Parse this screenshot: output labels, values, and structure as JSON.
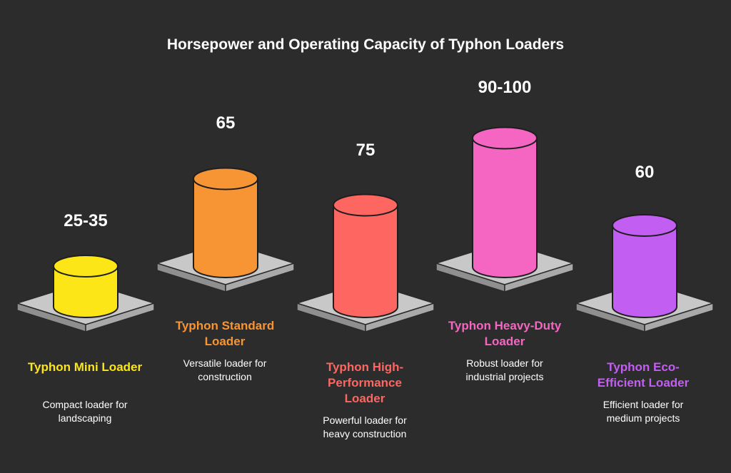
{
  "chart_data": {
    "type": "bar",
    "title": "Horsepower and Operating Capacity of Typhon Loaders",
    "categories": [
      "Typhon Mini Loader",
      "Typhon Standard Loader",
      "Typhon High-Performance Loader",
      "Typhon Heavy-Duty Loader",
      "Typhon Eco-Efficient Loader"
    ],
    "value_labels": [
      "25-35",
      "65",
      "75",
      "90-100",
      "60"
    ],
    "values": [
      30,
      65,
      75,
      95,
      60
    ],
    "items": [
      {
        "value_label": "25-35",
        "value": 30,
        "name": "Typhon Mini Loader",
        "description": "Compact loader for landscaping",
        "color": "#fde617"
      },
      {
        "value_label": "65",
        "value": 65,
        "name": "Typhon Standard Loader",
        "description": "Versatile loader for construction",
        "color": "#f79535"
      },
      {
        "value_label": "75",
        "value": 75,
        "name": "Typhon High-Performance Loader",
        "description": "Powerful loader for heavy construction",
        "color": "#fd6661"
      },
      {
        "value_label": "90-100",
        "value": 95,
        "name": "Typhon Heavy-Duty Loader",
        "description": "Robust loader for industrial projects",
        "color": "#f466c1"
      },
      {
        "value_label": "60",
        "value": 60,
        "name": "Typhon Eco-Efficient Loader",
        "description": "Efficient loader for medium projects",
        "color": "#c35ef3"
      }
    ]
  }
}
